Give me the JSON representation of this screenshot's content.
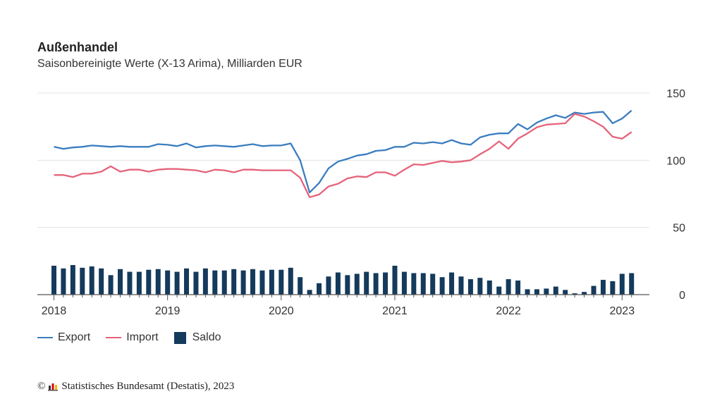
{
  "title": "Außenhandel",
  "subtitle": "Saisonbereinigte Werte (X-13 Arima), Milliarden EUR",
  "legend": {
    "export_label": "Export",
    "import_label": "Import",
    "saldo_label": "Saldo"
  },
  "colors": {
    "export": "#3a7dbf",
    "import": "#e5637a",
    "saldo": "#143a5c",
    "grid": "#e3e3e3",
    "axis": "#555555"
  },
  "footer": {
    "copyright_symbol": "©",
    "text": "Statistisches Bundesamt (Destatis), 2023"
  },
  "chart_data": {
    "type": "line",
    "x_start": "2018-01",
    "x_tick_labels": [
      "2018",
      "2019",
      "2020",
      "2021",
      "2022",
      "2023"
    ],
    "y_tick_labels": [
      "150",
      "100",
      "50",
      "0"
    ],
    "ylim": [
      0,
      150
    ],
    "grid": true,
    "legend_position": "bottom-left",
    "series": [
      {
        "name": "Export",
        "type": "line",
        "values": [
          110.0,
          108.5,
          109.5,
          110.0,
          111.0,
          110.5,
          110.0,
          110.5,
          110.0,
          110.0,
          110.0,
          112.0,
          111.5,
          110.5,
          112.5,
          109.5,
          110.5,
          111.0,
          110.5,
          110.0,
          111.0,
          112.0,
          110.5,
          111.0,
          111.0,
          112.5,
          100.0,
          76.0,
          83.0,
          94.0,
          99.0,
          101.0,
          103.5,
          104.5,
          107.0,
          107.5,
          110.0,
          110.0,
          113.0,
          112.5,
          113.5,
          112.5,
          115.0,
          112.5,
          111.5,
          117.0,
          119.0,
          120.0,
          120.0,
          127.0,
          123.0,
          128.0,
          131.0,
          133.5,
          131.5,
          135.5,
          134.5,
          135.5,
          136.0,
          127.5,
          131.0,
          137.0
        ]
      },
      {
        "name": "Import",
        "type": "line",
        "values": [
          89.0,
          89.0,
          87.5,
          90.0,
          90.0,
          91.5,
          95.5,
          91.5,
          93.0,
          93.0,
          91.5,
          93.0,
          93.5,
          93.5,
          93.0,
          92.5,
          91.0,
          93.0,
          92.5,
          91.0,
          93.0,
          93.0,
          92.5,
          92.5,
          92.5,
          92.5,
          87.0,
          72.5,
          74.5,
          80.5,
          82.5,
          86.5,
          88.0,
          87.5,
          91.0,
          91.0,
          88.5,
          93.0,
          97.0,
          96.5,
          98.0,
          99.5,
          98.5,
          99.0,
          100.0,
          104.5,
          108.5,
          114.0,
          108.5,
          116.0,
          120.0,
          124.5,
          126.5,
          127.0,
          127.5,
          134.5,
          132.5,
          129.0,
          125.0,
          117.5,
          116.0,
          121.0
        ]
      },
      {
        "name": "Saldo",
        "type": "bar",
        "values": [
          21.5,
          19.5,
          22.0,
          20.0,
          21.0,
          19.5,
          14.5,
          19.0,
          17.0,
          17.0,
          18.5,
          19.0,
          18.0,
          17.0,
          19.5,
          17.0,
          19.5,
          18.0,
          18.0,
          19.0,
          18.0,
          19.0,
          18.0,
          18.5,
          18.5,
          20.0,
          13.0,
          3.5,
          8.5,
          13.5,
          16.5,
          14.5,
          15.5,
          17.0,
          16.0,
          16.5,
          21.5,
          17.0,
          16.0,
          16.0,
          15.5,
          13.0,
          16.5,
          13.5,
          11.5,
          12.5,
          10.5,
          6.0,
          11.5,
          10.5,
          4.0,
          4.0,
          4.5,
          6.0,
          3.5,
          1.0,
          2.0,
          6.5,
          11.0,
          10.0,
          15.5,
          16.0
        ]
      }
    ]
  }
}
